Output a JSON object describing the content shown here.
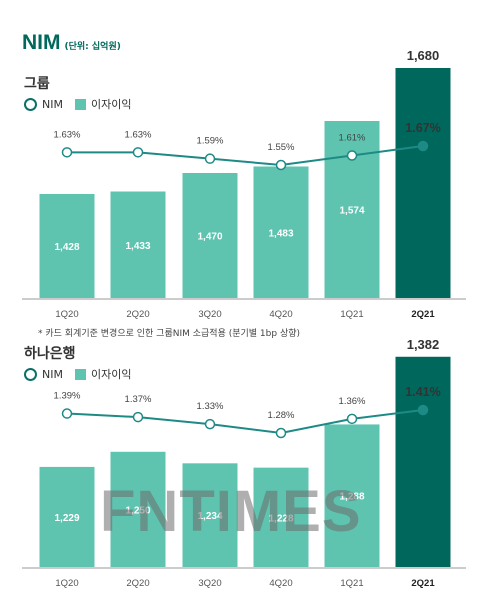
{
  "header": {
    "title": "NIM",
    "unit": "(단위: 십억원)"
  },
  "legend": {
    "nim": "NIM",
    "interest": "이자이익"
  },
  "note": "* 카드 회계기준 변경으로 인한 그룹NIM 소급적용 (분기별 1bp 상향)",
  "watermark": "FNTIMES",
  "colors": {
    "bar": "#5ec4b0",
    "bar_highlight": "#00675c",
    "line": "#1e8a85",
    "title": "#00685c"
  },
  "chart_data": [
    {
      "type": "bar",
      "title": "그룹",
      "categories": [
        "1Q20",
        "2Q20",
        "3Q20",
        "4Q20",
        "1Q21",
        "2Q21"
      ],
      "series": [
        {
          "name": "이자이익",
          "type": "bar",
          "values": [
            1428,
            1433,
            1470,
            1483,
            1574,
            1680
          ],
          "labels": [
            "1,428",
            "1,433",
            "1,470",
            "1,483",
            "1,574",
            "1,680"
          ]
        },
        {
          "name": "NIM",
          "type": "line",
          "values": [
            1.63,
            1.63,
            1.59,
            1.55,
            1.61,
            1.67
          ],
          "labels": [
            "1.63%",
            "1.63%",
            "1.59%",
            "1.55%",
            "1.61%",
            "1.67%"
          ]
        }
      ],
      "highlight_index": 5
    },
    {
      "type": "bar",
      "title": "하나은행",
      "categories": [
        "1Q20",
        "2Q20",
        "3Q20",
        "4Q20",
        "1Q21",
        "2Q21"
      ],
      "series": [
        {
          "name": "이자이익",
          "type": "bar",
          "values": [
            1229,
            1250,
            1234,
            1228,
            1288,
            1382
          ],
          "labels": [
            "1,229",
            "1,250",
            "1,234",
            "1,228",
            "1,288",
            "1,382"
          ]
        },
        {
          "name": "NIM",
          "type": "line",
          "values": [
            1.39,
            1.37,
            1.33,
            1.28,
            1.36,
            1.41
          ],
          "labels": [
            "1.39%",
            "1.37%",
            "1.33%",
            "1.28%",
            "1.36%",
            "1.41%"
          ]
        }
      ],
      "highlight_index": 5
    }
  ]
}
